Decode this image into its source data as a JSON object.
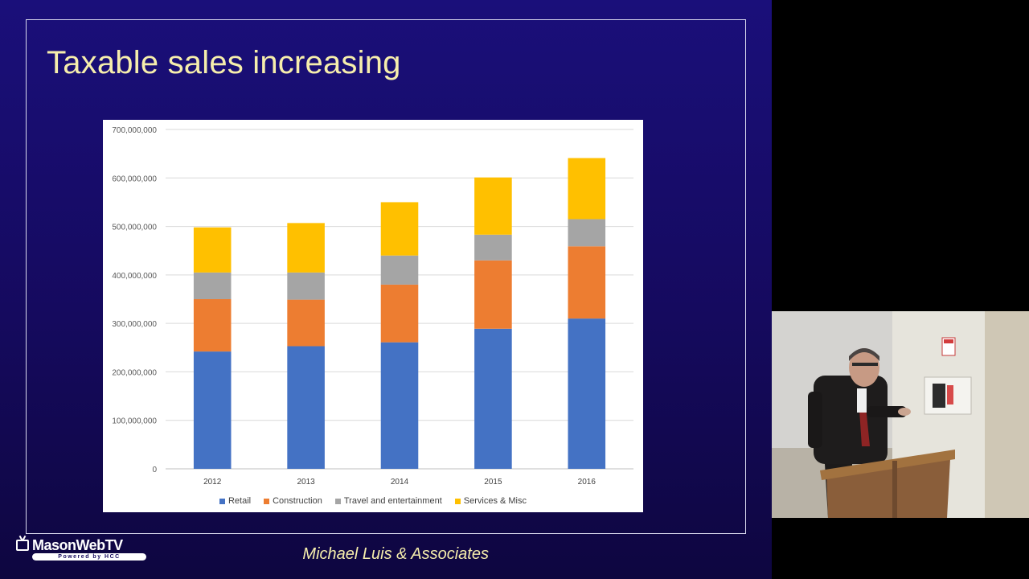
{
  "slide": {
    "title": "Taxable sales increasing",
    "footer": "Michael Luis & Associates"
  },
  "logo": {
    "name": "MasonWebTV",
    "tagline": "Powered by HCC"
  },
  "colors": {
    "background": "#170b6a",
    "title_text": "#f6eeac",
    "retail": "#4472c4",
    "construction": "#ed7d31",
    "travel": "#a5a5a5",
    "services": "#ffc000"
  },
  "chart_data": {
    "type": "bar",
    "stacked": true,
    "categories": [
      "2012",
      "2013",
      "2014",
      "2015",
      "2016"
    ],
    "series": [
      {
        "name": "Retail",
        "color": "#4472c4",
        "values": [
          242000000,
          253000000,
          261000000,
          289000000,
          310000000
        ]
      },
      {
        "name": "Construction",
        "color": "#ed7d31",
        "values": [
          108000000,
          96000000,
          119000000,
          141000000,
          149000000
        ]
      },
      {
        "name": "Travel and entertainment",
        "color": "#a5a5a5",
        "values": [
          55000000,
          56000000,
          60000000,
          53000000,
          56000000
        ]
      },
      {
        "name": "Services & Misc",
        "color": "#ffc000",
        "values": [
          93000000,
          102000000,
          110000000,
          118000000,
          126000000
        ]
      }
    ],
    "yticks": [
      "0",
      "100,000,000",
      "200,000,000",
      "300,000,000",
      "400,000,000",
      "500,000,000",
      "600,000,000",
      "700,000,000"
    ],
    "ylim": [
      0,
      700000000
    ],
    "grid": true,
    "legend_position": "bottom"
  }
}
